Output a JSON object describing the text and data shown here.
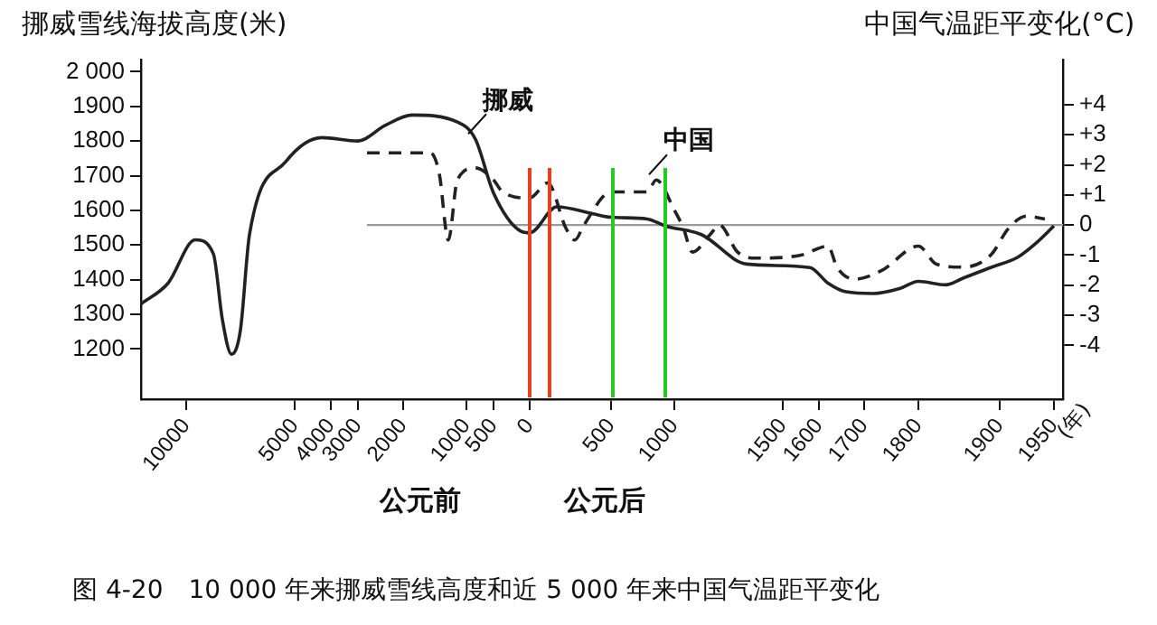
{
  "chart_data": {
    "type": "line",
    "title": "图 4-20　10 000 年来挪威雪线高度和近 5 000 年来中国气温距平变化",
    "ylabel": "挪威雪线海拔高度(米)",
    "y2label": "中国气温距平变化(°C)",
    "annotations": [
      "公元前",
      "公元后"
    ],
    "categories": [
      null,
      null,
      null,
      null,
      null,
      "10000",
      null,
      null,
      null,
      null,
      null,
      null,
      null,
      null,
      null,
      null,
      null,
      "5000",
      null,
      null,
      null,
      "4000",
      null,
      null,
      "3000",
      null,
      null,
      null,
      null,
      "2000",
      null,
      null,
      null,
      null,
      null,
      null,
      "1000",
      null,
      null,
      "500",
      null,
      null,
      null,
      "0",
      null,
      null,
      null,
      null,
      null,
      null,
      null,
      null,
      "500",
      null,
      null,
      null,
      null,
      null,
      null,
      "1000",
      null,
      null,
      null,
      null,
      null,
      null,
      null,
      null,
      null,
      null,
      null,
      "1500",
      null,
      null,
      null,
      "1600",
      null,
      null,
      null,
      null,
      "1700",
      null,
      null,
      null,
      null,
      null,
      "1800",
      null,
      null,
      null,
      null,
      null,
      null,
      null,
      null,
      "1900",
      null,
      null,
      null,
      null,
      null,
      "1950",
      null
    ],
    "xlabel": "(年)",
    "series": [
      {
        "name": "挪威",
        "color": "#222222",
        "line_style": "solid",
        "values": [
          1330,
          null,
          null,
          1390,
          null,
          null,
          1515,
          null,
          1475,
          1285,
          1185,
          1255,
          1530,
          null,
          null,
          null,
          1740,
          null,
          null,
          null,
          1810,
          null,
          null,
          null,
          1800,
          null,
          null,
          1845,
          null,
          null,
          1875,
          null,
          null,
          null,
          null,
          1855,
          null,
          1805,
          null,
          1650,
          null,
          null,
          1540,
          1535,
          null,
          null,
          1610,
          null,
          null,
          null,
          1590,
          null,
          1580,
          null,
          null,
          null,
          1575,
          null,
          1555,
          null,
          null,
          null,
          1530,
          null,
          null,
          null,
          null,
          1445,
          null,
          null,
          null,
          null,
          null,
          null,
          1435,
          null,
          1390,
          null,
          1365,
          null,
          null,
          1360,
          null,
          null,
          1375,
          null,
          1395,
          null,
          null,
          1385,
          null,
          1405,
          null,
          null,
          1435,
          null,
          null,
          1465,
          null,
          1505,
          null,
          1555,
          null
        ]
      },
      {
        "name": "中国",
        "color": "#222222",
        "line_style": "dashed",
        "axis": "y2",
        "values": [
          null,
          null,
          null,
          null,
          null,
          null,
          null,
          null,
          null,
          null,
          null,
          null,
          null,
          null,
          null,
          null,
          null,
          null,
          null,
          null,
          null,
          null,
          null,
          null,
          null,
          2.4,
          null,
          null,
          null,
          null,
          null,
          null,
          2.4,
          1.7,
          -0.5,
          1.5,
          null,
          1.9,
          null,
          1.5,
          1.1,
          null,
          null,
          0.9,
          null,
          1.4,
          null,
          -0.1,
          -0.5,
          0,
          null,
          null,
          1.1,
          null,
          null,
          null,
          1.1,
          1.5,
          null,
          0.5,
          -0.1,
          -0.9,
          null,
          -0.3,
          0,
          null,
          -0.9,
          null,
          -1.1,
          null,
          null,
          null,
          null,
          -1.0,
          null,
          null,
          -0.7,
          -1.4,
          null,
          -1.8,
          null,
          null,
          -1.5,
          null,
          null,
          null,
          -0.7,
          null,
          -1.3,
          null,
          null,
          -1.4,
          null,
          null,
          -1.0,
          null,
          -0.1,
          null,
          0.3,
          null,
          0.2,
          null,
          null
        ]
      }
    ],
    "ylim": [
      1055,
      2035
    ],
    "yticks": [
      1200,
      1300,
      1400,
      1500,
      1600,
      1700,
      1800,
      1900,
      {
        "value": 2000,
        "label": "2 000"
      }
    ],
    "y2lim": [
      -5.79,
      5.5
    ],
    "y2ticks": [
      {
        "value": -4,
        "label": "-4"
      },
      {
        "value": -3,
        "label": "-3"
      },
      {
        "value": -2,
        "label": "-2"
      },
      {
        "value": -1,
        "label": "-1"
      },
      0,
      {
        "value": 1,
        "label": "+1"
      },
      {
        "value": 2,
        "label": "+2"
      },
      {
        "value": 3,
        "label": "+3"
      },
      {
        "value": 4,
        "label": "+4"
      }
    ],
    "ref_lines": [
      {
        "axis": "y2",
        "value": 0,
        "color": "#9a9a9a"
      }
    ],
    "grid": false,
    "legend": false,
    "marker": "none"
  }
}
